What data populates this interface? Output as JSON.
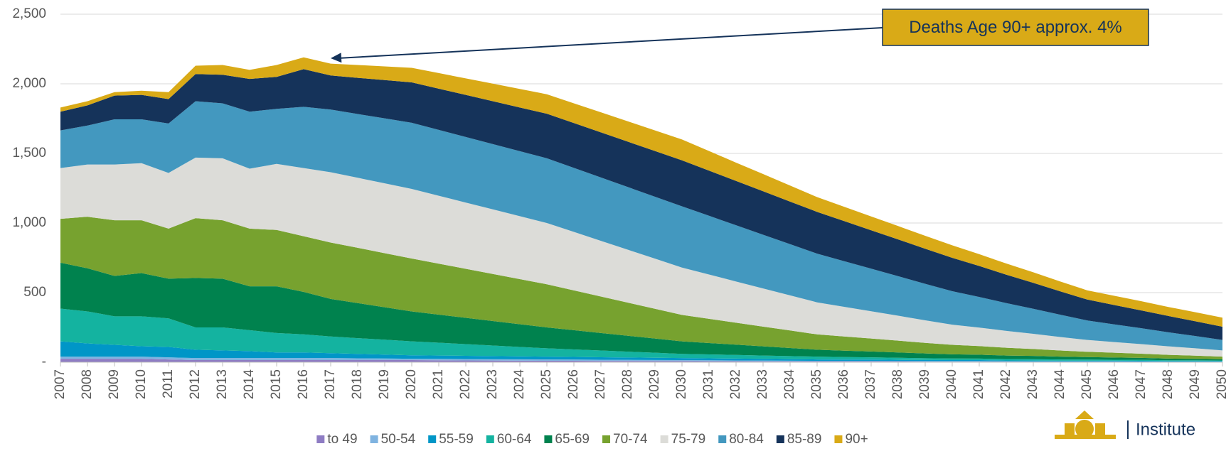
{
  "chart_data": {
    "type": "stacked_area",
    "annotation": "Deaths Age 90+ approx. 4%",
    "categories": [
      "2007",
      "2008",
      "2009",
      "2010",
      "2011",
      "2012",
      "2013",
      "2014",
      "2015",
      "2016",
      "2017",
      "2018",
      "2019",
      "2020",
      "2021",
      "2022",
      "2023",
      "2024",
      "2025",
      "2026",
      "2027",
      "2028",
      "2029",
      "2030",
      "2031",
      "2032",
      "2033",
      "2034",
      "2035",
      "2036",
      "2037",
      "2038",
      "2039",
      "2040",
      "2041",
      "2042",
      "2043",
      "2044",
      "2045",
      "2046",
      "2047",
      "2048",
      "2049",
      "2050"
    ],
    "ylim": [
      0,
      2500
    ],
    "yticks": [
      {
        "value": 0,
        "label": "-"
      },
      500,
      {
        "value": 1000,
        "label": "1,000"
      },
      {
        "value": 1500,
        "label": "1,500"
      },
      {
        "value": 2000,
        "label": "2,000"
      },
      {
        "value": 2500,
        "label": "2,500"
      }
    ],
    "grid": true,
    "legend": "bottom",
    "series": [
      {
        "name": "to 49",
        "color": "#8e7cc3",
        "values": [
          25,
          25,
          25,
          25,
          20,
          15,
          15,
          15,
          15,
          15,
          15,
          15,
          15,
          15,
          14,
          13,
          12,
          11,
          10,
          10,
          9,
          9,
          8,
          8,
          7,
          7,
          6,
          6,
          5,
          5,
          5,
          5,
          4,
          4,
          4,
          4,
          3,
          3,
          3,
          3,
          3,
          2,
          2,
          2
        ]
      },
      {
        "name": "50-54",
        "color": "#7fb3e0",
        "values": [
          15,
          15,
          15,
          15,
          15,
          15,
          15,
          15,
          15,
          15,
          15,
          13,
          12,
          10,
          10,
          10,
          10,
          10,
          10,
          9,
          9,
          8,
          8,
          7,
          7,
          6,
          6,
          5,
          5,
          5,
          5,
          4,
          4,
          4,
          4,
          3,
          3,
          3,
          3,
          3,
          2,
          2,
          2,
          2
        ]
      },
      {
        "name": "55-59",
        "color": "#0096c7",
        "values": [
          110,
          95,
          85,
          75,
          75,
          60,
          55,
          50,
          40,
          40,
          35,
          32,
          28,
          25,
          24,
          23,
          22,
          21,
          20,
          19,
          18,
          17,
          16,
          15,
          14,
          13,
          12,
          11,
          10,
          9,
          9,
          8,
          8,
          7,
          7,
          6,
          6,
          5,
          5,
          5,
          5,
          4,
          4,
          4
        ]
      },
      {
        "name": "60-64",
        "color": "#14b3a0",
        "values": [
          235,
          230,
          205,
          215,
          205,
          160,
          165,
          150,
          140,
          130,
          120,
          113,
          107,
          100,
          92,
          84,
          76,
          68,
          60,
          54,
          48,
          42,
          36,
          30,
          28,
          26,
          24,
          22,
          20,
          18,
          16,
          15,
          13,
          12,
          11,
          10,
          10,
          9,
          8,
          7,
          7,
          6,
          6,
          5
        ]
      },
      {
        "name": "65-69",
        "color": "#00824e",
        "values": [
          330,
          310,
          290,
          310,
          285,
          355,
          350,
          315,
          335,
          305,
          270,
          252,
          233,
          215,
          202,
          189,
          176,
          163,
          150,
          138,
          126,
          114,
          102,
          90,
          82,
          74,
          66,
          58,
          50,
          46,
          42,
          38,
          34,
          30,
          28,
          25,
          23,
          20,
          18,
          16,
          14,
          12,
          10,
          8
        ]
      },
      {
        "name": "70-74",
        "color": "#77a22f",
        "values": [
          315,
          370,
          400,
          380,
          360,
          430,
          420,
          415,
          405,
          400,
          405,
          397,
          388,
          380,
          366,
          352,
          338,
          324,
          310,
          286,
          262,
          238,
          214,
          190,
          174,
          158,
          142,
          126,
          110,
          102,
          93,
          85,
          76,
          68,
          62,
          56,
          50,
          44,
          38,
          34,
          30,
          27,
          23,
          19
        ]
      },
      {
        "name": "75-79",
        "color": "#dcdcd8",
        "values": [
          365,
          375,
          400,
          410,
          400,
          435,
          445,
          430,
          475,
          490,
          505,
          503,
          502,
          500,
          488,
          476,
          464,
          452,
          440,
          420,
          400,
          380,
          360,
          340,
          318,
          296,
          274,
          252,
          230,
          213,
          196,
          179,
          162,
          145,
          133,
          121,
          109,
          97,
          85,
          77,
          69,
          61,
          53,
          45
        ]
      },
      {
        "name": "80-84",
        "color": "#4398bf",
        "values": [
          270,
          280,
          325,
          315,
          355,
          405,
          395,
          410,
          395,
          440,
          450,
          458,
          467,
          475,
          473,
          471,
          469,
          467,
          465,
          460,
          455,
          450,
          445,
          440,
          422,
          404,
          386,
          368,
          350,
          328,
          306,
          284,
          262,
          240,
          220,
          200,
          180,
          160,
          140,
          127,
          114,
          101,
          88,
          75
        ]
      },
      {
        "name": "85-89",
        "color": "#15335a",
        "values": [
          135,
          145,
          170,
          175,
          175,
          195,
          205,
          235,
          230,
          270,
          245,
          260,
          275,
          290,
          296,
          302,
          308,
          314,
          320,
          322,
          324,
          326,
          328,
          330,
          324,
          318,
          312,
          306,
          300,
          288,
          276,
          264,
          252,
          240,
          222,
          204,
          186,
          168,
          150,
          139,
          128,
          117,
          106,
          95
        ]
      },
      {
        "name": "90+",
        "color": "#d9aa17",
        "values": [
          30,
          30,
          25,
          30,
          50,
          60,
          70,
          65,
          85,
          85,
          85,
          92,
          98,
          105,
          112,
          119,
          126,
          133,
          140,
          142,
          144,
          146,
          148,
          150,
          141,
          132,
          124,
          115,
          106,
          103,
          99,
          96,
          93,
          90,
          85,
          80,
          76,
          71,
          66,
          66,
          66,
          65,
          65,
          65
        ]
      }
    ]
  },
  "logo": {
    "text": "Institute"
  }
}
